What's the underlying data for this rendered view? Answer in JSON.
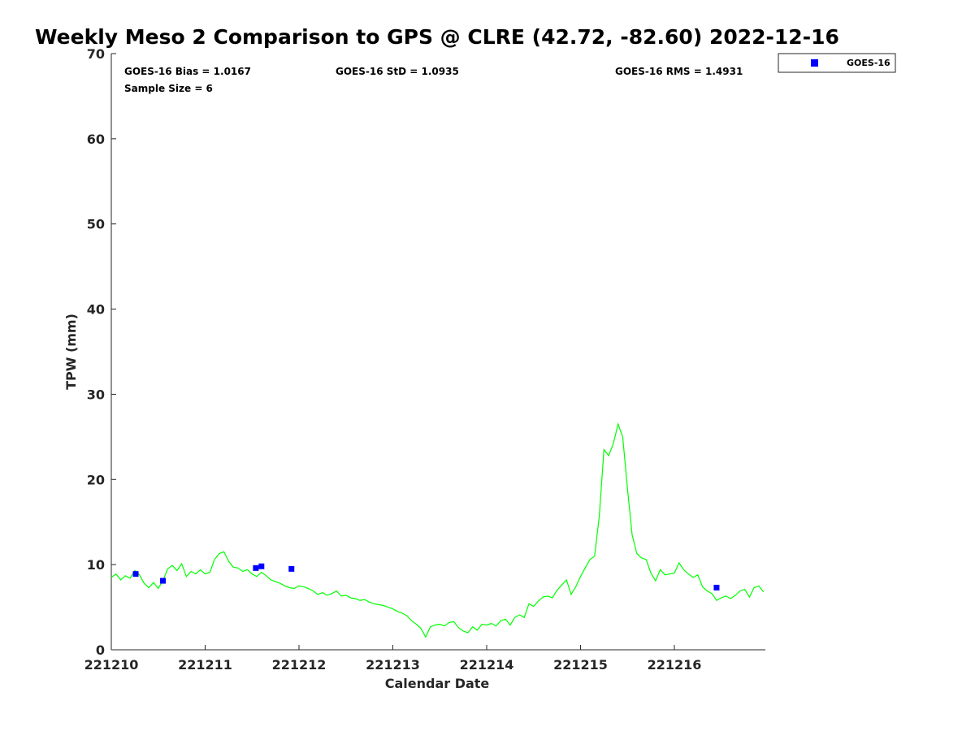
{
  "chart_data": {
    "type": "scatter",
    "title": "Weekly Meso 2 Comparison to GPS @ CLRE (42.72, -82.60) 2022-12-16",
    "xlabel": "Calendar Date",
    "ylabel": "TPW (mm)",
    "ylim": [
      0,
      70
    ],
    "xlim": [
      0,
      6.97
    ],
    "x_units": "days since 221210",
    "xticks": [
      {
        "value": 0,
        "label": "221210"
      },
      {
        "value": 1,
        "label": "221211"
      },
      {
        "value": 2,
        "label": "221212"
      },
      {
        "value": 3,
        "label": "221213"
      },
      {
        "value": 4,
        "label": "221214"
      },
      {
        "value": 5,
        "label": "221215"
      },
      {
        "value": 6,
        "label": "221216"
      }
    ],
    "yticks": [
      0,
      10,
      20,
      30,
      40,
      50,
      60,
      70
    ],
    "stats": {
      "bias": "GOES-16 Bias = 1.0167",
      "std": "GOES-16 StD = 1.0935",
      "rms": "GOES-16 RMS = 1.4931",
      "sample": "Sample Size = 6"
    },
    "legend": {
      "label": "GOES-16",
      "position": "top-right (outside plot)"
    },
    "series": [
      {
        "name": "GOES-16",
        "kind": "scatter",
        "color": "#0000ff",
        "x": [
          0.26,
          0.55,
          1.54,
          1.6,
          1.92,
          6.45
        ],
        "y": [
          8.9,
          8.1,
          9.6,
          9.8,
          9.5,
          7.3
        ]
      },
      {
        "name": "GPS",
        "kind": "line",
        "color": "#00ff00",
        "x": [
          0.0,
          0.05,
          0.1,
          0.15,
          0.2,
          0.25,
          0.3,
          0.35,
          0.4,
          0.45,
          0.5,
          0.55,
          0.6,
          0.65,
          0.7,
          0.75,
          0.8,
          0.85,
          0.9,
          0.95,
          1.0,
          1.05,
          1.1,
          1.15,
          1.2,
          1.25,
          1.3,
          1.35,
          1.4,
          1.45,
          1.5,
          1.55,
          1.6,
          1.65,
          1.7,
          1.75,
          1.8,
          1.85,
          1.9,
          1.95,
          2.0,
          2.05,
          2.1,
          2.15,
          2.2,
          2.25,
          2.3,
          2.35,
          2.4,
          2.45,
          2.5,
          2.55,
          2.6,
          2.65,
          2.7,
          2.75,
          2.8,
          2.85,
          2.9,
          2.95,
          3.0,
          3.05,
          3.1,
          3.15,
          3.2,
          3.25,
          3.3,
          3.35,
          3.4,
          3.45,
          3.5,
          3.55,
          3.6,
          3.65,
          3.7,
          3.75,
          3.8,
          3.85,
          3.9,
          3.95,
          4.0,
          4.05,
          4.1,
          4.15,
          4.2,
          4.25,
          4.3,
          4.35,
          4.4,
          4.45,
          4.5,
          4.55,
          4.6,
          4.65,
          4.7,
          4.75,
          4.8,
          4.85,
          4.9,
          4.95,
          5.0,
          5.05,
          5.1,
          5.15,
          5.2,
          5.25,
          5.3,
          5.35,
          5.4,
          5.45,
          5.5,
          5.55,
          5.6,
          5.65,
          5.7,
          5.75,
          5.8,
          5.85,
          5.9,
          5.95,
          6.0,
          6.05,
          6.1,
          6.15,
          6.2,
          6.25,
          6.3,
          6.35,
          6.4,
          6.45,
          6.5,
          6.55,
          6.6,
          6.65,
          6.7,
          6.75,
          6.8,
          6.85,
          6.9,
          6.95
        ],
        "y": [
          8.5,
          8.9,
          8.2,
          8.7,
          8.4,
          9.3,
          8.8,
          7.8,
          7.3,
          7.9,
          7.2,
          8.1,
          9.5,
          9.9,
          9.3,
          10.1,
          8.6,
          9.2,
          8.9,
          9.4,
          8.9,
          9.1,
          10.6,
          11.3,
          11.5,
          10.4,
          9.7,
          9.6,
          9.2,
          9.4,
          8.9,
          8.6,
          9.1,
          8.7,
          8.2,
          8.0,
          7.8,
          7.5,
          7.3,
          7.2,
          7.5,
          7.4,
          7.2,
          6.9,
          6.5,
          6.7,
          6.4,
          6.6,
          6.9,
          6.3,
          6.4,
          6.1,
          6.0,
          5.8,
          5.9,
          5.6,
          5.4,
          5.3,
          5.2,
          5.0,
          4.8,
          4.5,
          4.3,
          4.0,
          3.4,
          3.0,
          2.5,
          1.5,
          2.7,
          2.9,
          3.0,
          2.8,
          3.2,
          3.3,
          2.6,
          2.2,
          2.0,
          2.7,
          2.3,
          3.0,
          2.9,
          3.1,
          2.8,
          3.4,
          3.6,
          2.9,
          3.8,
          4.1,
          3.8,
          5.4,
          5.1,
          5.7,
          6.2,
          6.3,
          6.1,
          7.0,
          7.6,
          8.2,
          6.5,
          7.4,
          8.6,
          9.6,
          10.6,
          11.0,
          15.7,
          23.5,
          22.8,
          24.2,
          26.5,
          25.0,
          19.0,
          13.5,
          11.3,
          10.8,
          10.6,
          9.0,
          8.1,
          9.4,
          8.8,
          8.9,
          9.0,
          10.2,
          9.4,
          8.9,
          8.5,
          8.8,
          7.4,
          6.9,
          6.6,
          5.8,
          6.1,
          6.3,
          6.0,
          6.4,
          6.9,
          7.1,
          6.2,
          7.3,
          7.5,
          6.8
        ]
      }
    ]
  }
}
